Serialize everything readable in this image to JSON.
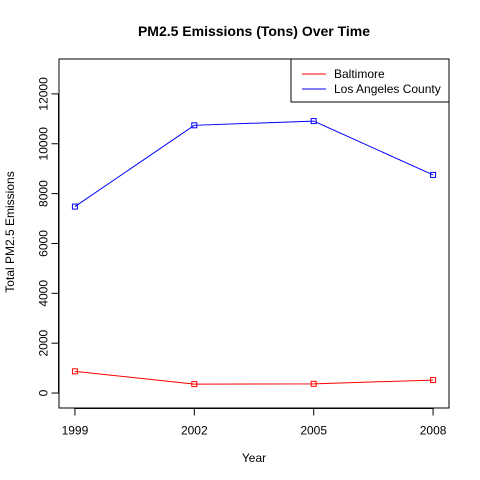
{
  "chart_data": {
    "type": "line",
    "title": "PM2.5 Emissions (Tons) Over Time",
    "xlabel": "Year",
    "ylabel": "Total PM2.5 Emissions",
    "x": [
      1999,
      2002,
      2005,
      2008
    ],
    "x_ticks": [
      "1999",
      "2002",
      "2005",
      "2008"
    ],
    "y_ticks": [
      0,
      2000,
      4000,
      6000,
      8000,
      10000,
      12000
    ],
    "xlim": [
      1998.6,
      2008.4
    ],
    "ylim": [
      -600,
      13400
    ],
    "grid": false,
    "legend_position": "top-right",
    "series": [
      {
        "name": "Baltimore",
        "color": "#ff0000",
        "marker": "square",
        "values": [
          870,
          360,
          370,
          520
        ]
      },
      {
        "name": "Los Angeles County",
        "color": "#0000ff",
        "marker": "square",
        "values": [
          7480,
          10740,
          10910,
          8750
        ]
      }
    ]
  }
}
